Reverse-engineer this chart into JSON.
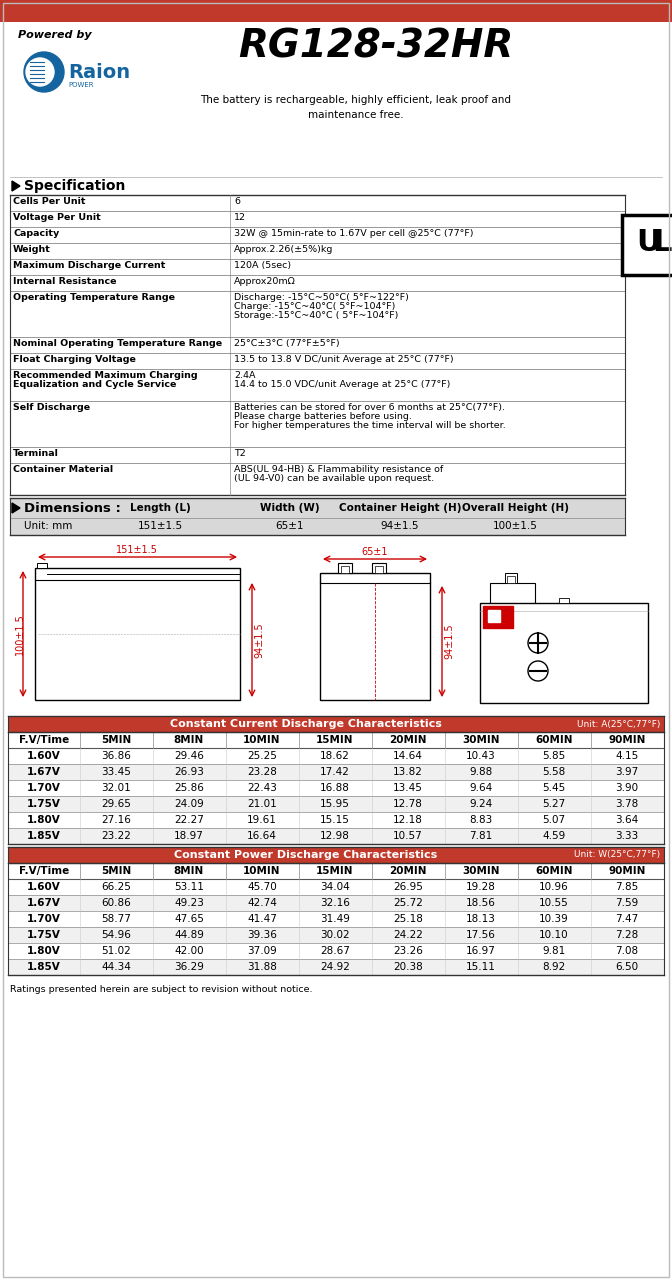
{
  "title": "RG128-32HR",
  "powered_by": "Powered by",
  "tagline": "The battery is rechargeable, highly efficient, leak proof and\nmaintenance free.",
  "spec_section": "Specification",
  "dimensions_section": "Dimensions :",
  "dimensions_unit": "Unit: mm",
  "dim_headers": [
    "Length (L)",
    "Width (W)",
    "Container Height (H)",
    "Overall Height (H)"
  ],
  "dim_values": [
    "151±1.5",
    "65±1",
    "94±1.5",
    "100±1.5"
  ],
  "spec_rows": [
    [
      "Cells Per Unit",
      "6"
    ],
    [
      "Voltage Per Unit",
      "12"
    ],
    [
      "Capacity",
      "32W @ 15min-rate to 1.67V per cell @25°C (77°F)"
    ],
    [
      "Weight",
      "Approx.2.26(±5%)kg"
    ],
    [
      "Maximum Discharge Current",
      "120A (5sec)"
    ],
    [
      "Internal Resistance",
      "Approx20mΩ"
    ],
    [
      "Operating Temperature Range",
      "Discharge: -15°C~50°C( 5°F~122°F)\nCharge: -15°C~40°C( 5°F~104°F)\nStorage:-15°C~40°C ( 5°F~104°F)"
    ],
    [
      "Nominal Operating Temperature Range",
      "25°C±3°C (77°F±5°F)"
    ],
    [
      "Float Charging Voltage",
      "13.5 to 13.8 V DC/unit Average at 25°C (77°F)"
    ],
    [
      "Recommended Maximum Charging\nEqualization and Cycle Service",
      "2.4A\n14.4 to 15.0 VDC/unit Average at 25°C (77°F)"
    ],
    [
      "Self Discharge",
      "Batteries can be stored for over 6 months at 25°C(77°F).\nPlease charge batteries before using.\nFor higher temperatures the time interval will be shorter."
    ],
    [
      "Terminal",
      "T2"
    ],
    [
      "Container Material",
      "ABS(UL 94-HB) & Flammability resistance of\n(UL 94-V0) can be available upon request."
    ]
  ],
  "spec_row_heights": [
    16,
    16,
    16,
    16,
    16,
    16,
    46,
    16,
    16,
    32,
    46,
    16,
    32
  ],
  "cc_header": "Constant Current Discharge Characteristics",
  "cc_unit": "Unit: A(25°C,77°F)",
  "cp_header": "Constant Power Discharge Characteristics",
  "cp_unit": "Unit: W(25°C,77°F)",
  "table_col_headers": [
    "F.V/Time",
    "5MIN",
    "8MIN",
    "10MIN",
    "15MIN",
    "20MIN",
    "30MIN",
    "60MIN",
    "90MIN"
  ],
  "cc_data": [
    [
      "1.60V",
      "36.86",
      "29.46",
      "25.25",
      "18.62",
      "14.64",
      "10.43",
      "5.85",
      "4.15"
    ],
    [
      "1.67V",
      "33.45",
      "26.93",
      "23.28",
      "17.42",
      "13.82",
      "9.88",
      "5.58",
      "3.97"
    ],
    [
      "1.70V",
      "32.01",
      "25.86",
      "22.43",
      "16.88",
      "13.45",
      "9.64",
      "5.45",
      "3.90"
    ],
    [
      "1.75V",
      "29.65",
      "24.09",
      "21.01",
      "15.95",
      "12.78",
      "9.24",
      "5.27",
      "3.78"
    ],
    [
      "1.80V",
      "27.16",
      "22.27",
      "19.61",
      "15.15",
      "12.18",
      "8.83",
      "5.07",
      "3.64"
    ],
    [
      "1.85V",
      "23.22",
      "18.97",
      "16.64",
      "12.98",
      "10.57",
      "7.81",
      "4.59",
      "3.33"
    ]
  ],
  "cp_data": [
    [
      "1.60V",
      "66.25",
      "53.11",
      "45.70",
      "34.04",
      "26.95",
      "19.28",
      "10.96",
      "7.85"
    ],
    [
      "1.67V",
      "60.86",
      "49.23",
      "42.74",
      "32.16",
      "25.72",
      "18.56",
      "10.55",
      "7.59"
    ],
    [
      "1.70V",
      "58.77",
      "47.65",
      "41.47",
      "31.49",
      "25.18",
      "18.13",
      "10.39",
      "7.47"
    ],
    [
      "1.75V",
      "54.96",
      "44.89",
      "39.36",
      "30.02",
      "24.22",
      "17.56",
      "10.10",
      "7.28"
    ],
    [
      "1.80V",
      "51.02",
      "42.00",
      "37.09",
      "28.67",
      "23.26",
      "16.97",
      "9.81",
      "7.08"
    ],
    [
      "1.85V",
      "44.34",
      "36.29",
      "31.88",
      "24.92",
      "20.38",
      "15.11",
      "8.92",
      "6.50"
    ]
  ],
  "footer": "Ratings presented herein are subject to revision without notice.",
  "red_color": "#c0392b",
  "table_header_bg": "#c0392b",
  "table_alt_row": "#f0f0f0",
  "dim_table_bg": "#d8d8d8",
  "dim_label_color": "#cc0000",
  "border_color": "#444444"
}
